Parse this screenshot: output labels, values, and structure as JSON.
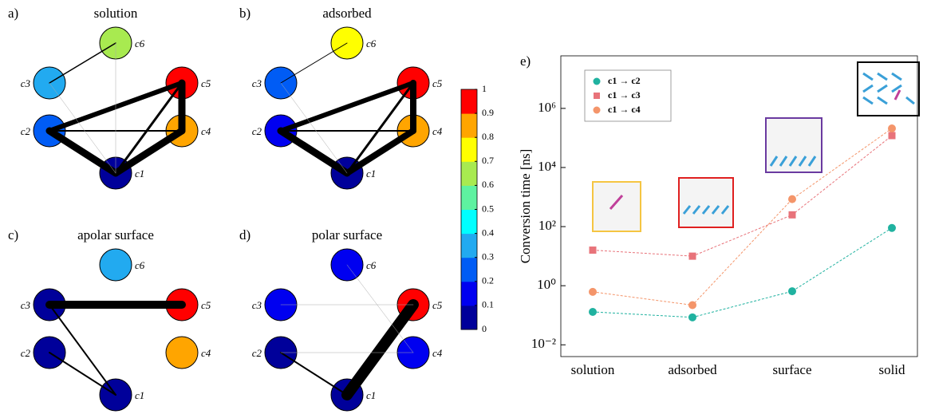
{
  "panels": [
    {
      "label": "a)",
      "title": "solution",
      "nodes": [
        {
          "label": "c1",
          "value": 0.05
        },
        {
          "label": "c2",
          "value": 0.25
        },
        {
          "label": "c3",
          "value": 0.35
        },
        {
          "label": "c4",
          "value": 0.85
        },
        {
          "label": "c5",
          "value": 0.95
        },
        {
          "label": "c6",
          "value": 0.65
        }
      ],
      "edges": [
        {
          "from": "c1",
          "to": "c2",
          "weight": 9
        },
        {
          "from": "c1",
          "to": "c4",
          "weight": 9
        },
        {
          "from": "c2",
          "to": "c5",
          "weight": 6
        },
        {
          "from": "c4",
          "to": "c5",
          "weight": 9
        },
        {
          "from": "c1",
          "to": "c5",
          "weight": 3
        },
        {
          "from": "c2",
          "to": "c4",
          "weight": 2
        },
        {
          "from": "c3",
          "to": "c6",
          "weight": 1.5
        },
        {
          "from": "c1",
          "to": "c6",
          "weight": 0.5
        },
        {
          "from": "c3",
          "to": "c1",
          "weight": 0.5
        }
      ]
    },
    {
      "label": "b)",
      "title": "adsorbed",
      "nodes": [
        {
          "label": "c1",
          "value": 0.05
        },
        {
          "label": "c2",
          "value": 0.15
        },
        {
          "label": "c3",
          "value": 0.25
        },
        {
          "label": "c4",
          "value": 0.85
        },
        {
          "label": "c5",
          "value": 0.95
        },
        {
          "label": "c6",
          "value": 0.75
        }
      ],
      "edges": [
        {
          "from": "c1",
          "to": "c2",
          "weight": 9
        },
        {
          "from": "c2",
          "to": "c5",
          "weight": 6
        },
        {
          "from": "c1",
          "to": "c4",
          "weight": 8
        },
        {
          "from": "c4",
          "to": "c5",
          "weight": 8
        },
        {
          "from": "c1",
          "to": "c5",
          "weight": 3
        },
        {
          "from": "c2",
          "to": "c4",
          "weight": 2
        },
        {
          "from": "c3",
          "to": "c6",
          "weight": 1
        },
        {
          "from": "c3",
          "to": "c1",
          "weight": 0.5
        }
      ]
    },
    {
      "label": "c)",
      "title": "apolar surface",
      "nodes": [
        {
          "label": "c1",
          "value": 0.05
        },
        {
          "label": "c2",
          "value": 0.05
        },
        {
          "label": "c3",
          "value": 0.05
        },
        {
          "label": "c4",
          "value": 0.85
        },
        {
          "label": "c5",
          "value": 0.95
        },
        {
          "label": "c6",
          "value": 0.35
        }
      ],
      "edges": [
        {
          "from": "c3",
          "to": "c5",
          "weight": 10
        },
        {
          "from": "c3",
          "to": "c1",
          "weight": 2
        },
        {
          "from": "c2",
          "to": "c1",
          "weight": 2
        }
      ]
    },
    {
      "label": "d)",
      "title": "polar surface",
      "nodes": [
        {
          "label": "c1",
          "value": 0.05
        },
        {
          "label": "c2",
          "value": 0.05
        },
        {
          "label": "c3",
          "value": 0.15
        },
        {
          "label": "c4",
          "value": 0.15
        },
        {
          "label": "c5",
          "value": 0.95
        },
        {
          "label": "c6",
          "value": 0.15
        }
      ],
      "edges": [
        {
          "from": "c1",
          "to": "c5",
          "weight": 14
        },
        {
          "from": "c2",
          "to": "c1",
          "weight": 2
        },
        {
          "from": "c3",
          "to": "c5",
          "weight": 0.5
        },
        {
          "from": "c2",
          "to": "c4",
          "weight": 0.5
        },
        {
          "from": "c6",
          "to": "c4",
          "weight": 0.5
        }
      ]
    }
  ],
  "colorbar": {
    "ticks": [
      0,
      0.1,
      0.2,
      0.3,
      0.4,
      0.5,
      0.6,
      0.7,
      0.8,
      0.9,
      1
    ],
    "colors": [
      "#00009a",
      "#0000f0",
      "#005cf5",
      "#22aaf0",
      "#00ffff",
      "#5ef2a0",
      "#a8ea50",
      "#ffff00",
      "#ffa500",
      "#ff0000"
    ]
  },
  "chart_data": {
    "type": "line",
    "label": "e)",
    "y_label": "Conversion time [ns]",
    "log_y": true,
    "categories": [
      "solution",
      "adsorbed",
      "surface",
      "solid"
    ],
    "ylim": [
      0.004,
      60000000
    ],
    "yticks": [
      {
        "value": 0.01,
        "label": "10⁻²"
      },
      {
        "value": 1,
        "label": "10⁰"
      },
      {
        "value": 100,
        "label": "10²"
      },
      {
        "value": 10000,
        "label": "10⁴"
      },
      {
        "value": 1000000,
        "label": "10⁶"
      }
    ],
    "series": [
      {
        "name": "c1 → c2",
        "color": "#20b2a0",
        "marker": "circle",
        "values": [
          0.13,
          0.085,
          0.65,
          90
        ]
      },
      {
        "name": "c1 → c3",
        "color": "#e8737a",
        "marker": "square",
        "values": [
          16,
          10,
          250,
          120000
        ]
      },
      {
        "name": "c1 → c4",
        "color": "#f4956a",
        "marker": "circle",
        "values": [
          0.62,
          0.22,
          850,
          210000
        ]
      }
    ]
  }
}
